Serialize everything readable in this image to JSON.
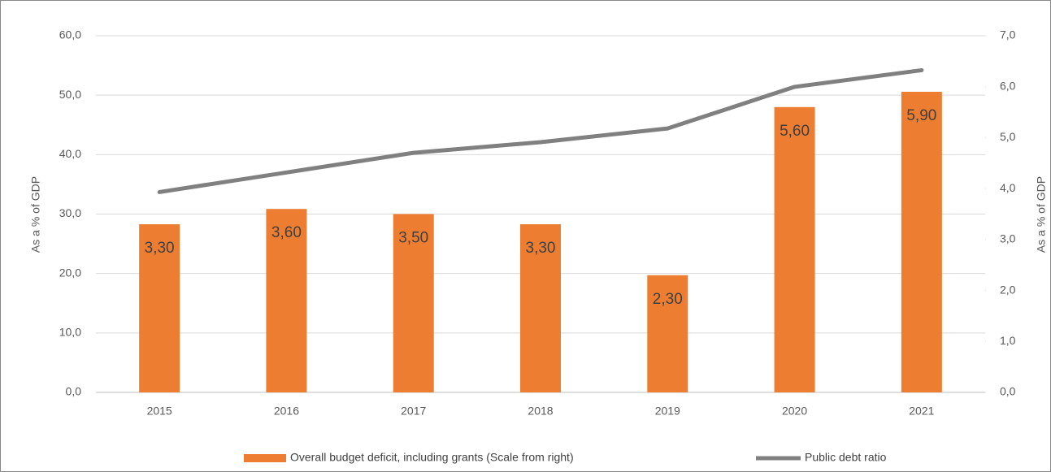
{
  "chart_data": {
    "type": "bar_line",
    "categories": [
      "2015",
      "2016",
      "2017",
      "2018",
      "2019",
      "2020",
      "2021"
    ],
    "series": [
      {
        "name": "Overall budget deficit, including grants (Scale from right)",
        "color": "#ed7d31",
        "type": "bar",
        "axis": "y2",
        "values": [
          3.3,
          3.6,
          3.5,
          3.3,
          2.3,
          5.6,
          5.9
        ],
        "value_labels": [
          "3,30",
          "3,60",
          "3,50",
          "3,30",
          "2,30",
          "5,60",
          "5,90"
        ]
      },
      {
        "name": "Public debt ratio",
        "color": "#808080",
        "type": "line",
        "axis": "y",
        "values": [
          33.7,
          37.0,
          40.3,
          42.1,
          44.4,
          51.4,
          54.2
        ]
      }
    ],
    "ylabel": "As a % of GDP",
    "y2label": "As a % of GDP",
    "ylim": [
      0,
      60
    ],
    "yticks": [
      {
        "value": 0,
        "label": "0,0"
      },
      {
        "value": 10,
        "label": "10,0"
      },
      {
        "value": 20,
        "label": "20,0"
      },
      {
        "value": 30,
        "label": "30,0"
      },
      {
        "value": 40,
        "label": "40,0"
      },
      {
        "value": 50,
        "label": "50,0"
      },
      {
        "value": 60,
        "label": "60,0"
      }
    ],
    "y2lim": [
      0,
      7
    ],
    "y2ticks": [
      {
        "value": 0,
        "label": "0,0"
      },
      {
        "value": 1,
        "label": "1,0"
      },
      {
        "value": 2,
        "label": "2,0"
      },
      {
        "value": 3,
        "label": "3,0"
      },
      {
        "value": 4,
        "label": "4,0"
      },
      {
        "value": 5,
        "label": "5,0"
      },
      {
        "value": 6,
        "label": "6,0"
      },
      {
        "value": 7,
        "label": "7,0"
      }
    ],
    "grid": true,
    "legend": "bottom"
  }
}
